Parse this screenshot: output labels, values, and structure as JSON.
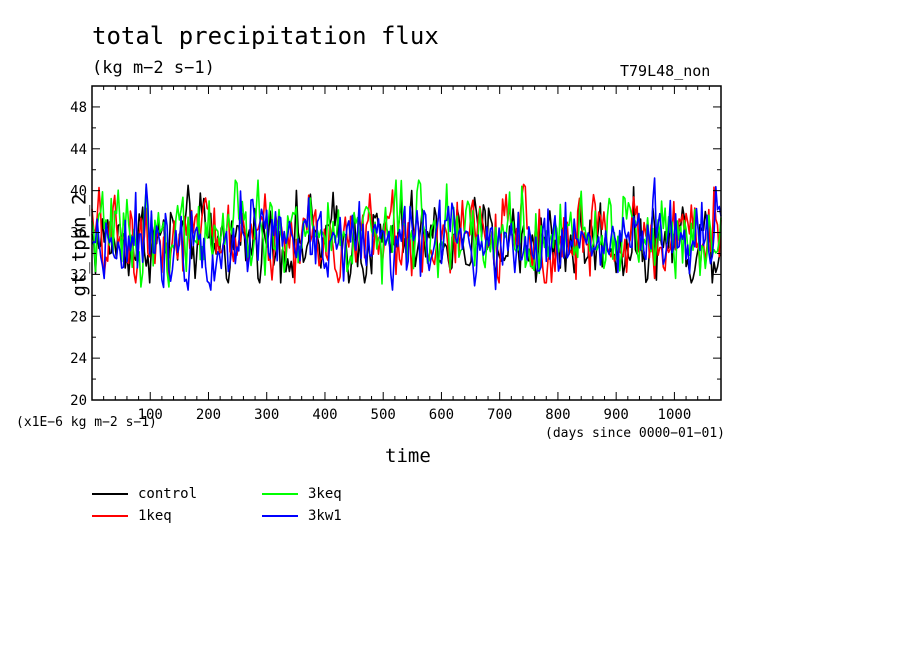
{
  "header": {
    "title": "total precipitation flux",
    "subtitle": "(kg m−2 s−1)",
    "run_id": "T79L48_non"
  },
  "axes": {
    "units_note": "(x1E−6 kg m−2 s−1)",
    "days_note": "(days since 0000−01−01)",
    "xlabel": "time",
    "ylabel": "gt_tppn_2"
  },
  "legend": {
    "items": [
      {
        "label": "control",
        "color": "#000000"
      },
      {
        "label": "1keq",
        "color": "#ff0000"
      },
      {
        "label": "3keq",
        "color": "#00ff00"
      },
      {
        "label": "3kw1",
        "color": "#0000ff"
      }
    ]
  },
  "chart_data": {
    "type": "line",
    "title": "total precipitation flux",
    "xlabel": "time",
    "ylabel": "gt_tppn_2",
    "xlim": [
      0,
      1080
    ],
    "ylim": [
      20,
      50
    ],
    "x_ticks": [
      100,
      200,
      300,
      400,
      500,
      600,
      700,
      800,
      900,
      1000
    ],
    "y_ticks": [
      20,
      24,
      28,
      32,
      36,
      40,
      44,
      48
    ],
    "x_step": 3,
    "series": [
      {
        "name": "control",
        "color": "#000000",
        "mean": 35.2,
        "range": [
          31.2,
          41.3
        ]
      },
      {
        "name": "1keq",
        "color": "#ff0000",
        "mean": 35.5,
        "range": [
          31.2,
          40.6
        ]
      },
      {
        "name": "3keq",
        "color": "#00ff00",
        "mean": 36.0,
        "range": [
          30.8,
          41.0
        ]
      },
      {
        "name": "3kw1",
        "color": "#0000ff",
        "mean": 35.5,
        "range": [
          30.5,
          42.3
        ]
      }
    ]
  }
}
